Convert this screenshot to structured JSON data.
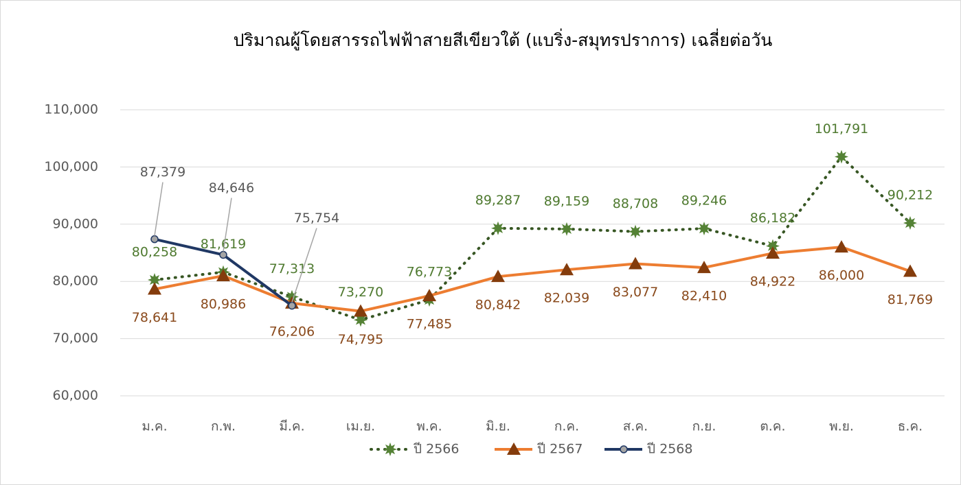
{
  "chart_data": {
    "type": "line",
    "title": "ปริมาณผู้โดยสารรถไฟฟ้าสายสีเขียวใต้ (แบริ่ง-สมุทรปราการ) เฉลี่ยต่อวัน",
    "categories": [
      "ม.ค.",
      "ก.พ.",
      "มี.ค.",
      "เม.ย.",
      "พ.ค.",
      "มิ.ย.",
      "ก.ค.",
      "ส.ค.",
      "ก.ย.",
      "ต.ค.",
      "พ.ย.",
      "ธ.ค."
    ],
    "series": [
      {
        "name": "ปี 2566",
        "color": "#375623",
        "marker_color": "#548235",
        "label_color": "#4f7a30",
        "dash": "dotted",
        "marker": "star",
        "values": [
          80258,
          81619,
          77313,
          73270,
          76773,
          89287,
          89159,
          88708,
          89246,
          86182,
          101791,
          90212
        ],
        "value_labels": [
          "80,258",
          "81,619",
          "77,313",
          "73,270",
          "76,773",
          "89,287",
          "89,159",
          "88,708",
          "89,246",
          "86,182",
          "101,791",
          "90,212"
        ]
      },
      {
        "name": "ปี 2567",
        "color": "#ed7d31",
        "marker_color": "#843c0c",
        "label_color": "#8a4a1c",
        "dash": "solid",
        "marker": "triangle",
        "values": [
          78641,
          80986,
          76206,
          74795,
          77485,
          80842,
          82039,
          83077,
          82410,
          84922,
          86000,
          81769
        ],
        "value_labels": [
          "78,641",
          "80,986",
          "76,206",
          "74,795",
          "77,485",
          "80,842",
          "82,039",
          "83,077",
          "82,410",
          "84,922",
          "86,000",
          "81,769"
        ]
      },
      {
        "name": "ปี 2568",
        "color": "#203864",
        "marker_color": "#a5a5a5",
        "label_color": "#595959",
        "dash": "solid",
        "marker": "circle",
        "values": [
          87379,
          84646,
          75754,
          null,
          null,
          null,
          null,
          null,
          null,
          null,
          null,
          null
        ],
        "value_labels": [
          "87,379",
          "84,646",
          "75,754",
          null,
          null,
          null,
          null,
          null,
          null,
          null,
          null,
          null
        ]
      }
    ],
    "ylim": [
      60000,
      110000
    ],
    "yticks": [
      {
        "value": 60000,
        "label": "60,000"
      },
      {
        "value": 70000,
        "label": "70,000"
      },
      {
        "value": 80000,
        "label": "80,000"
      },
      {
        "value": 90000,
        "label": "90,000"
      },
      {
        "value": 100000,
        "label": "100,000"
      },
      {
        "value": 110000,
        "label": "110,000"
      }
    ],
    "grid": true,
    "legend": "bottom"
  }
}
